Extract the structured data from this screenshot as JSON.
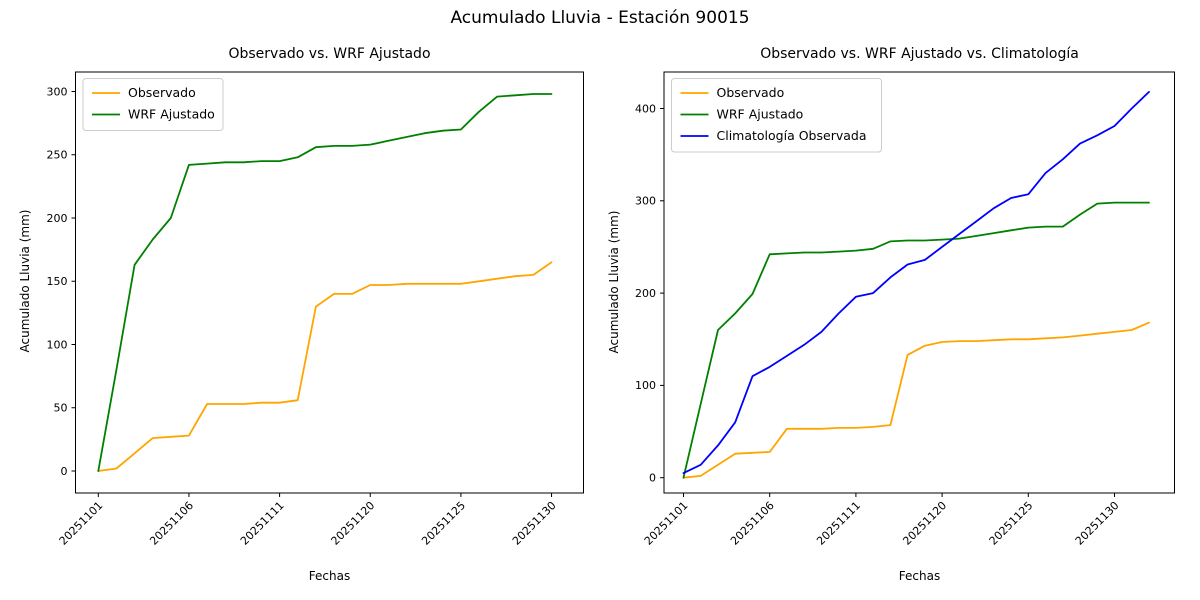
{
  "figure": {
    "title": "Acumulado Lluvia - Estación 90015"
  },
  "colors": {
    "observado": "#FFA500",
    "wrf_ajustado": "#008000",
    "climatologia": "#0000FF",
    "spine": "#000000",
    "legend_border": "#cccccc",
    "background": "#ffffff"
  },
  "chart_data": [
    {
      "type": "line",
      "title": "Observado vs. WRF Ajustado",
      "xlabel": "Fechas",
      "ylabel": "Acumulado Lluvia (mm)",
      "x_tick_labels": [
        "20251101",
        "20251106",
        "20251111",
        "20251120",
        "20251125",
        "20251130"
      ],
      "x_tick_indices": [
        0,
        5,
        10,
        15,
        20,
        25
      ],
      "y_ticks": [
        0,
        50,
        100,
        150,
        200,
        250,
        300
      ],
      "ylim": [
        -15,
        313
      ],
      "n_points": 26,
      "grid": false,
      "legend_position": "upper left",
      "series": [
        {
          "name": "Observado",
          "color": "#FFA500",
          "values": [
            0,
            2,
            14,
            26,
            27,
            28,
            53,
            53,
            53,
            54,
            54,
            56,
            130,
            140,
            140,
            147,
            147,
            148,
            148,
            148,
            148,
            150,
            152,
            154,
            155,
            165
          ]
        },
        {
          "name": "WRF Ajustado",
          "color": "#008000",
          "values": [
            0,
            80,
            163,
            183,
            200,
            242,
            243,
            244,
            244,
            245,
            245,
            248,
            256,
            257,
            257,
            258,
            261,
            264,
            267,
            269,
            270,
            284,
            296,
            297,
            298,
            298
          ]
        }
      ]
    },
    {
      "type": "line",
      "title": "Observado vs. WRF Ajustado vs. Climatología",
      "xlabel": "Fechas",
      "ylabel": "Acumulado Lluvia (mm)",
      "x_tick_labels": [
        "20251101",
        "20251106",
        "20251111",
        "20251120",
        "20251125",
        "20251130"
      ],
      "x_tick_indices": [
        0,
        5,
        10,
        15,
        20,
        25
      ],
      "y_ticks": [
        0,
        100,
        200,
        300,
        400
      ],
      "ylim": [
        -21,
        440
      ],
      "n_points": 28,
      "grid": false,
      "legend_position": "upper left",
      "series": [
        {
          "name": "Observado",
          "color": "#FFA500",
          "values": [
            0,
            2,
            14,
            26,
            27,
            28,
            53,
            53,
            53,
            54,
            54,
            55,
            57,
            133,
            143,
            147,
            148,
            148,
            149,
            150,
            150,
            151,
            152,
            154,
            156,
            158,
            160,
            168
          ]
        },
        {
          "name": "WRF Ajustado",
          "color": "#008000",
          "values": [
            0,
            80,
            160,
            178,
            199,
            242,
            243,
            244,
            244,
            245,
            246,
            248,
            256,
            257,
            257,
            258,
            259,
            262,
            265,
            268,
            271,
            272,
            272,
            285,
            297,
            298,
            298,
            298
          ]
        },
        {
          "name": "Climatología Observada",
          "color": "#0000FF",
          "values": [
            5,
            14,
            35,
            60,
            110,
            120,
            132,
            144,
            158,
            178,
            196,
            200,
            217,
            231,
            236,
            250,
            264,
            278,
            292,
            303,
            307,
            330,
            345,
            362,
            371,
            381,
            400,
            418
          ]
        }
      ]
    }
  ]
}
